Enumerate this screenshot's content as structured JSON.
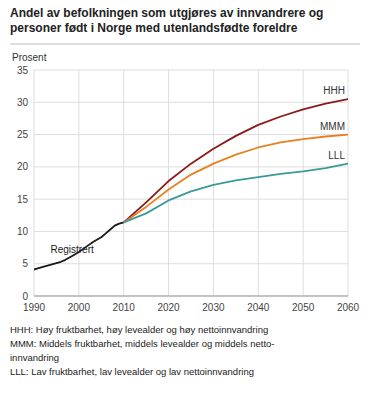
{
  "chart_data": {
    "type": "line",
    "title": [
      "Andel av befolkningen som utgjøres av innvandrere og",
      "personer født i Norge med utenlandsfødte foreldre"
    ],
    "y_label": "Prosent",
    "xlim": [
      1990,
      2060
    ],
    "ylim": [
      0,
      35
    ],
    "xticks": [
      1990,
      2000,
      2010,
      2020,
      2030,
      2040,
      2050,
      2060
    ],
    "yticks": [
      0,
      5,
      10,
      15,
      20,
      25,
      30,
      35
    ],
    "grid": true,
    "series": [
      {
        "name": "Registrert",
        "color": "#1a1a1a",
        "x": [
          1990,
          1991,
          1992,
          1993,
          1994,
          1995,
          1996,
          1997,
          1998,
          1999,
          2000,
          2001,
          2002,
          2003,
          2004,
          2005,
          2006,
          2007,
          2008,
          2009,
          2010
        ],
        "values": [
          4.1,
          4.3,
          4.5,
          4.7,
          4.9,
          5.1,
          5.3,
          5.6,
          6.0,
          6.4,
          6.8,
          7.3,
          7.8,
          8.3,
          8.7,
          9.1,
          9.7,
          10.3,
          10.9,
          11.2,
          11.4
        ]
      },
      {
        "name": "HHH",
        "color": "#8b1a1a",
        "x": [
          2010,
          2015,
          2020,
          2025,
          2030,
          2035,
          2040,
          2045,
          2050,
          2055,
          2060
        ],
        "values": [
          11.4,
          14.5,
          17.8,
          20.5,
          22.8,
          24.8,
          26.5,
          27.8,
          28.9,
          29.8,
          30.5
        ]
      },
      {
        "name": "MMM",
        "color": "#e88020",
        "x": [
          2010,
          2015,
          2020,
          2025,
          2030,
          2035,
          2040,
          2045,
          2050,
          2055,
          2060
        ],
        "values": [
          11.4,
          13.8,
          16.5,
          18.8,
          20.5,
          21.9,
          23.0,
          23.8,
          24.3,
          24.7,
          25.0
        ]
      },
      {
        "name": "LLL",
        "color": "#3a9a9a",
        "x": [
          2010,
          2015,
          2020,
          2025,
          2030,
          2035,
          2040,
          2045,
          2050,
          2055,
          2060
        ],
        "values": [
          11.4,
          12.8,
          14.8,
          16.2,
          17.2,
          17.9,
          18.4,
          18.9,
          19.3,
          19.8,
          20.5
        ]
      }
    ],
    "footnotes": [
      "HHH: Høy fruktbarhet, høy levealder og høy nettoinnvandring",
      "MMM: Middels fruktbarhet, middels levealder og middels netto-",
      "innvandring",
      "LLL: Lav fruktbarhet, lav levealder og lav nettoinnvandring"
    ]
  }
}
